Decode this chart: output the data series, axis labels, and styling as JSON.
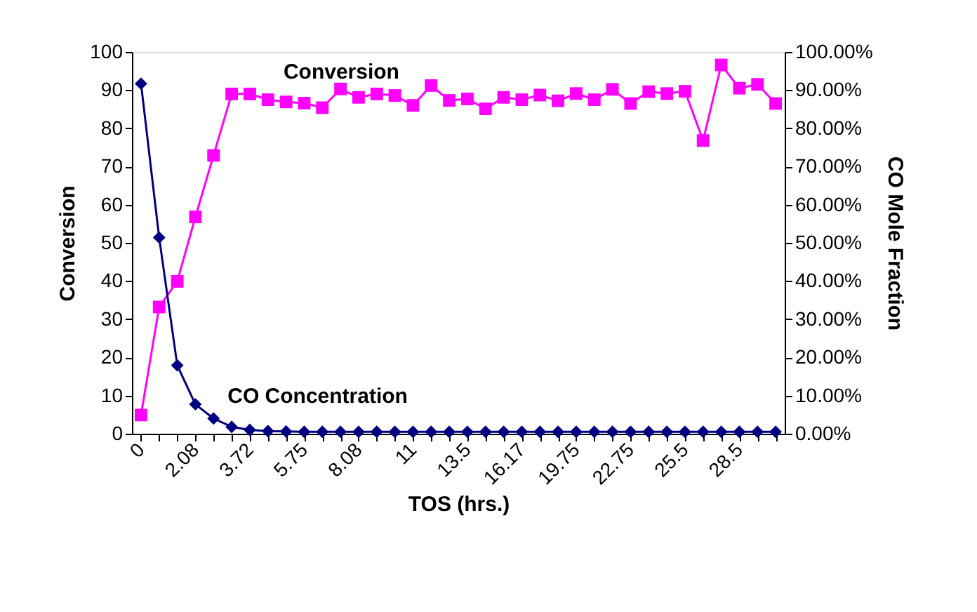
{
  "chart_data": {
    "type": "line",
    "xlabel": "TOS (hrs.)",
    "ylabel": "Conversion",
    "y2label": "CO Mole Fraction",
    "categories": [
      "0",
      null,
      null,
      "2.08",
      null,
      null,
      "3.72",
      null,
      null,
      "5.75",
      null,
      null,
      "8.08",
      null,
      null,
      "11",
      null,
      null,
      "13.5",
      null,
      null,
      "16.17",
      null,
      null,
      "19.75",
      null,
      null,
      "22.75",
      null,
      null,
      "25.5",
      null,
      null,
      "28.5",
      null,
      null
    ],
    "series": [
      {
        "name": "Conversion",
        "color": "#ff00ff",
        "marker": "square",
        "values": [
          4.9,
          33.2,
          39.9,
          56.8,
          72.9,
          89.0,
          89.0,
          87.5,
          86.9,
          86.6,
          85.4,
          90.3,
          88.1,
          89.0,
          88.6,
          86.0,
          91.2,
          87.3,
          87.7,
          85.1,
          88.1,
          87.5,
          88.7,
          87.2,
          89.1,
          87.5,
          90.2,
          86.5,
          89.6,
          89.1,
          89.7,
          76.8,
          96.6,
          90.5,
          91.5,
          86.5
        ]
      },
      {
        "name": "CO Concentration",
        "color": "#000080",
        "marker": "diamond",
        "axis": "y2",
        "values": [
          0.917,
          0.514,
          0.179,
          0.077,
          0.04,
          0.018,
          0.01,
          0.007,
          0.006,
          0.005,
          0.005,
          0.005,
          0.005,
          0.005,
          0.005,
          0.005,
          0.005,
          0.005,
          0.005,
          0.005,
          0.005,
          0.005,
          0.005,
          0.005,
          0.005,
          0.005,
          0.005,
          0.005,
          0.005,
          0.005,
          0.005,
          0.005,
          0.005,
          0.005,
          0.005,
          0.005
        ]
      }
    ],
    "ylim": [
      0,
      100
    ],
    "yticks": [
      0,
      10,
      20,
      30,
      40,
      50,
      60,
      70,
      80,
      90,
      100
    ],
    "y2lim": [
      0,
      1
    ],
    "y2ticks": [
      {
        "value": 0,
        "label": "0.00%"
      },
      {
        "value": 0.1,
        "label": "10.00%"
      },
      {
        "value": 0.2,
        "label": "20.00%"
      },
      {
        "value": 0.3,
        "label": "30.00%"
      },
      {
        "value": 0.4,
        "label": "40.00%"
      },
      {
        "value": 0.5,
        "label": "50.00%"
      },
      {
        "value": 0.6,
        "label": "60.00%"
      },
      {
        "value": 0.7,
        "label": "70.00%"
      },
      {
        "value": 0.8,
        "label": "80.00%"
      },
      {
        "value": 0.9,
        "label": "90.00%"
      },
      {
        "value": 1,
        "label": "100.00%"
      }
    ],
    "grid": false,
    "legend": false,
    "line_style": "solid"
  }
}
